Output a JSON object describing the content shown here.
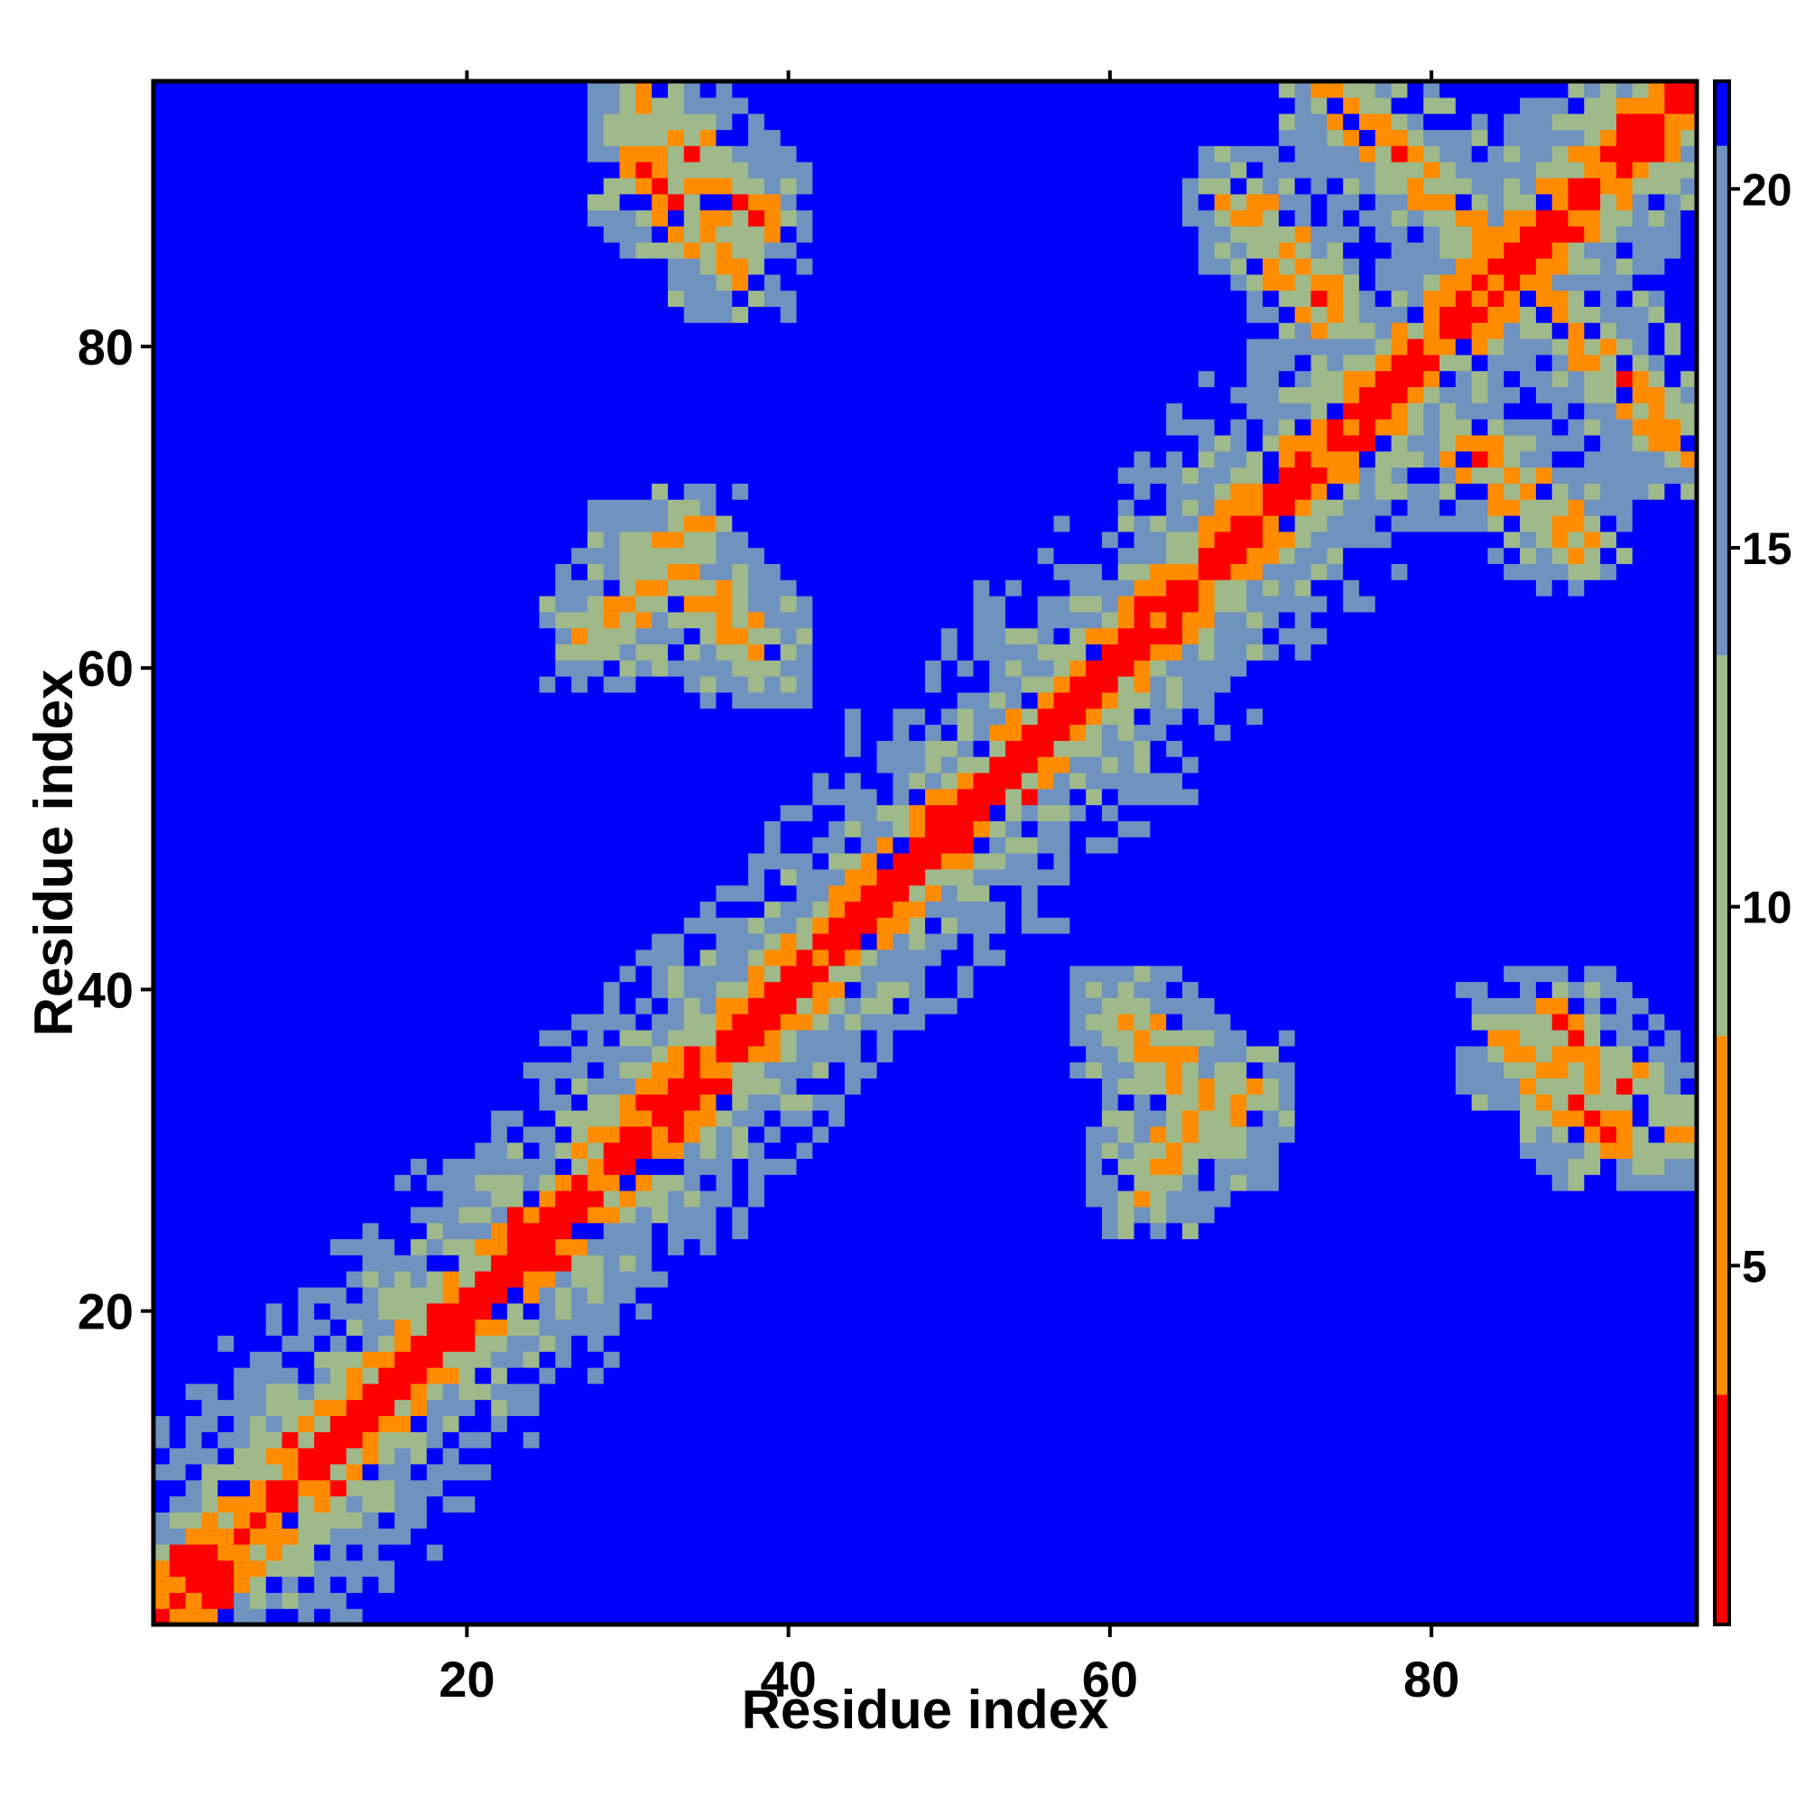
{
  "chart_data": {
    "type": "heatmap",
    "title": "",
    "xlabel": "Residue index",
    "ylabel": "Residue index",
    "xlim": [
      1,
      96
    ],
    "ylim": [
      1,
      96
    ],
    "n_residues": 96,
    "x_ticks": [
      20,
      40,
      60,
      80
    ],
    "y_ticks": [
      20,
      40,
      60,
      80
    ],
    "colorbar": {
      "ticks": [
        5,
        10,
        15,
        20
      ],
      "range": [
        0,
        21.5
      ],
      "colors": {
        "near": "#ff0000",
        "close": "#ff8c00",
        "mid": "#9fb98a",
        "far_mid": "#6f92bf",
        "far": "#0000ff"
      }
    },
    "description_of_data": "Symmetric residue-residue distance map (Angstrom). Short distances (red) along the main diagonal; orange anti-diagonal contact bands indicate beta-hairpins; large distances (blue, >21) fill off-diagonal blocks.",
    "features": {
      "helix_width": 1.8,
      "strand_pairs": [
        {
          "a": [
            31,
            38
          ],
          "b": [
            95,
            88
          ]
        },
        {
          "a": [
            74,
            82
          ],
          "b": [
            96,
            88
          ]
        },
        {
          "a": [
            31,
            38
          ],
          "b": [
            67,
            61
          ]
        },
        {
          "a": [
            62,
            68
          ],
          "b": [
            28,
            34
          ]
        },
        {
          "a": [
            85,
            91
          ],
          "b": [
            37,
            31
          ]
        },
        {
          "a": [
            82,
            89
          ],
          "b": [
            74,
            68
          ]
        }
      ],
      "grid_colors": [
        "#ff0000",
        "#ff8c00",
        "#9fb98a",
        "#6f92bf",
        "#0000ff"
      ],
      "thresholds": [
        3.2,
        7.0,
        11.5,
        16.0,
        21.0
      ]
    }
  }
}
